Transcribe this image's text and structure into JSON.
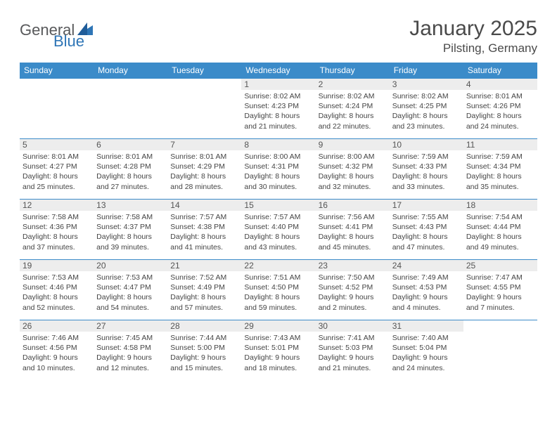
{
  "logo": {
    "general": "General",
    "blue": "Blue"
  },
  "title": "January 2025",
  "subtitle": "Pilsting, Germany",
  "colors": {
    "header_bg": "#3b8bc9",
    "header_fg": "#ffffff",
    "daynum_bg": "#ededed",
    "border": "#3b8bc9",
    "logo_gray": "#58595b",
    "logo_blue": "#2e75b6"
  },
  "weekdays": [
    "Sunday",
    "Monday",
    "Tuesday",
    "Wednesday",
    "Thursday",
    "Friday",
    "Saturday"
  ],
  "weeks": [
    [
      null,
      null,
      null,
      {
        "n": "1",
        "sr": "Sunrise: 8:02 AM",
        "ss": "Sunset: 4:23 PM",
        "d1": "Daylight: 8 hours",
        "d2": "and 21 minutes."
      },
      {
        "n": "2",
        "sr": "Sunrise: 8:02 AM",
        "ss": "Sunset: 4:24 PM",
        "d1": "Daylight: 8 hours",
        "d2": "and 22 minutes."
      },
      {
        "n": "3",
        "sr": "Sunrise: 8:02 AM",
        "ss": "Sunset: 4:25 PM",
        "d1": "Daylight: 8 hours",
        "d2": "and 23 minutes."
      },
      {
        "n": "4",
        "sr": "Sunrise: 8:01 AM",
        "ss": "Sunset: 4:26 PM",
        "d1": "Daylight: 8 hours",
        "d2": "and 24 minutes."
      }
    ],
    [
      {
        "n": "5",
        "sr": "Sunrise: 8:01 AM",
        "ss": "Sunset: 4:27 PM",
        "d1": "Daylight: 8 hours",
        "d2": "and 25 minutes."
      },
      {
        "n": "6",
        "sr": "Sunrise: 8:01 AM",
        "ss": "Sunset: 4:28 PM",
        "d1": "Daylight: 8 hours",
        "d2": "and 27 minutes."
      },
      {
        "n": "7",
        "sr": "Sunrise: 8:01 AM",
        "ss": "Sunset: 4:29 PM",
        "d1": "Daylight: 8 hours",
        "d2": "and 28 minutes."
      },
      {
        "n": "8",
        "sr": "Sunrise: 8:00 AM",
        "ss": "Sunset: 4:31 PM",
        "d1": "Daylight: 8 hours",
        "d2": "and 30 minutes."
      },
      {
        "n": "9",
        "sr": "Sunrise: 8:00 AM",
        "ss": "Sunset: 4:32 PM",
        "d1": "Daylight: 8 hours",
        "d2": "and 32 minutes."
      },
      {
        "n": "10",
        "sr": "Sunrise: 7:59 AM",
        "ss": "Sunset: 4:33 PM",
        "d1": "Daylight: 8 hours",
        "d2": "and 33 minutes."
      },
      {
        "n": "11",
        "sr": "Sunrise: 7:59 AM",
        "ss": "Sunset: 4:34 PM",
        "d1": "Daylight: 8 hours",
        "d2": "and 35 minutes."
      }
    ],
    [
      {
        "n": "12",
        "sr": "Sunrise: 7:58 AM",
        "ss": "Sunset: 4:36 PM",
        "d1": "Daylight: 8 hours",
        "d2": "and 37 minutes."
      },
      {
        "n": "13",
        "sr": "Sunrise: 7:58 AM",
        "ss": "Sunset: 4:37 PM",
        "d1": "Daylight: 8 hours",
        "d2": "and 39 minutes."
      },
      {
        "n": "14",
        "sr": "Sunrise: 7:57 AM",
        "ss": "Sunset: 4:38 PM",
        "d1": "Daylight: 8 hours",
        "d2": "and 41 minutes."
      },
      {
        "n": "15",
        "sr": "Sunrise: 7:57 AM",
        "ss": "Sunset: 4:40 PM",
        "d1": "Daylight: 8 hours",
        "d2": "and 43 minutes."
      },
      {
        "n": "16",
        "sr": "Sunrise: 7:56 AM",
        "ss": "Sunset: 4:41 PM",
        "d1": "Daylight: 8 hours",
        "d2": "and 45 minutes."
      },
      {
        "n": "17",
        "sr": "Sunrise: 7:55 AM",
        "ss": "Sunset: 4:43 PM",
        "d1": "Daylight: 8 hours",
        "d2": "and 47 minutes."
      },
      {
        "n": "18",
        "sr": "Sunrise: 7:54 AM",
        "ss": "Sunset: 4:44 PM",
        "d1": "Daylight: 8 hours",
        "d2": "and 49 minutes."
      }
    ],
    [
      {
        "n": "19",
        "sr": "Sunrise: 7:53 AM",
        "ss": "Sunset: 4:46 PM",
        "d1": "Daylight: 8 hours",
        "d2": "and 52 minutes."
      },
      {
        "n": "20",
        "sr": "Sunrise: 7:53 AM",
        "ss": "Sunset: 4:47 PM",
        "d1": "Daylight: 8 hours",
        "d2": "and 54 minutes."
      },
      {
        "n": "21",
        "sr": "Sunrise: 7:52 AM",
        "ss": "Sunset: 4:49 PM",
        "d1": "Daylight: 8 hours",
        "d2": "and 57 minutes."
      },
      {
        "n": "22",
        "sr": "Sunrise: 7:51 AM",
        "ss": "Sunset: 4:50 PM",
        "d1": "Daylight: 8 hours",
        "d2": "and 59 minutes."
      },
      {
        "n": "23",
        "sr": "Sunrise: 7:50 AM",
        "ss": "Sunset: 4:52 PM",
        "d1": "Daylight: 9 hours",
        "d2": "and 2 minutes."
      },
      {
        "n": "24",
        "sr": "Sunrise: 7:49 AM",
        "ss": "Sunset: 4:53 PM",
        "d1": "Daylight: 9 hours",
        "d2": "and 4 minutes."
      },
      {
        "n": "25",
        "sr": "Sunrise: 7:47 AM",
        "ss": "Sunset: 4:55 PM",
        "d1": "Daylight: 9 hours",
        "d2": "and 7 minutes."
      }
    ],
    [
      {
        "n": "26",
        "sr": "Sunrise: 7:46 AM",
        "ss": "Sunset: 4:56 PM",
        "d1": "Daylight: 9 hours",
        "d2": "and 10 minutes."
      },
      {
        "n": "27",
        "sr": "Sunrise: 7:45 AM",
        "ss": "Sunset: 4:58 PM",
        "d1": "Daylight: 9 hours",
        "d2": "and 12 minutes."
      },
      {
        "n": "28",
        "sr": "Sunrise: 7:44 AM",
        "ss": "Sunset: 5:00 PM",
        "d1": "Daylight: 9 hours",
        "d2": "and 15 minutes."
      },
      {
        "n": "29",
        "sr": "Sunrise: 7:43 AM",
        "ss": "Sunset: 5:01 PM",
        "d1": "Daylight: 9 hours",
        "d2": "and 18 minutes."
      },
      {
        "n": "30",
        "sr": "Sunrise: 7:41 AM",
        "ss": "Sunset: 5:03 PM",
        "d1": "Daylight: 9 hours",
        "d2": "and 21 minutes."
      },
      {
        "n": "31",
        "sr": "Sunrise: 7:40 AM",
        "ss": "Sunset: 5:04 PM",
        "d1": "Daylight: 9 hours",
        "d2": "and 24 minutes."
      },
      null
    ]
  ]
}
